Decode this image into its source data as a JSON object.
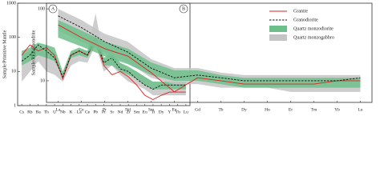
{
  "chart_data": [
    {
      "type": "line",
      "yscale": "log",
      "ylabel": "Sample/Primitive Mantle",
      "panel_label": "B",
      "categories": [
        "Cs",
        "Rb",
        "Ba",
        "Th",
        "U",
        "Nb",
        "K",
        "La",
        "Ce",
        "Pb",
        "Pr",
        "Sr",
        "Nd",
        "Zr",
        "Sm",
        "Eu",
        "Ti",
        "Dy",
        "Y",
        "Yb",
        "Lu"
      ],
      "ylim": [
        1,
        1000
      ],
      "yticks": [
        1,
        10,
        100,
        1000
      ],
      "series": [
        {
          "kind": "band",
          "color": "#c4c4c4",
          "low": [
            5,
            10,
            20,
            10,
            8,
            5,
            15,
            20,
            18,
            60,
            10,
            15,
            8,
            5,
            4,
            3,
            2,
            2,
            2,
            2,
            2
          ],
          "high": [
            30,
            40,
            60,
            40,
            35,
            9,
            35,
            45,
            40,
            500,
            25,
            40,
            18,
            12,
            10,
            7,
            5,
            5,
            5,
            5,
            5
          ]
        },
        {
          "kind": "band",
          "color": "#6dbf8a",
          "low": [
            15,
            20,
            30,
            25,
            20,
            7,
            25,
            30,
            25,
            60,
            15,
            15,
            10,
            8,
            6,
            4,
            3,
            3,
            3,
            3,
            3
          ],
          "high": [
            40,
            50,
            70,
            60,
            50,
            10,
            40,
            50,
            40,
            120,
            25,
            30,
            18,
            14,
            10,
            7,
            5,
            5,
            5,
            5,
            5
          ]
        },
        {
          "kind": "line",
          "color": "#e02020",
          "style": "solid",
          "values": [
            30,
            60,
            40,
            50,
            30,
            6,
            30,
            40,
            30,
            80,
            15,
            8,
            10,
            7,
            4,
            2,
            1.5,
            2,
            2.5,
            2.5,
            2.5
          ]
        },
        {
          "kind": "line",
          "color": "#111111",
          "style": "dashed",
          "values": [
            20,
            30,
            60,
            40,
            25,
            7,
            30,
            40,
            30,
            100,
            18,
            25,
            12,
            10,
            6,
            4,
            3,
            4,
            4,
            4,
            4
          ]
        }
      ]
    },
    {
      "type": "line",
      "yscale": "log",
      "ylabel": "Sample/REE Chondrite",
      "panel_label": "A",
      "legend": "upper right",
      "categories": [
        "La",
        "Ce",
        "Pr",
        "Nd",
        "Sm",
        "Eu",
        "Gd",
        "Tb",
        "Dy",
        "Ho",
        "Er",
        "Tm",
        "Yb",
        "Lu"
      ],
      "ylim": [
        5,
        120
      ],
      "yticks": [
        10,
        100
      ],
      "series": [
        {
          "name": "Quartz monzogabbro",
          "kind": "band",
          "color": "#c4c4c4",
          "low": [
            50,
            35,
            25,
            18,
            11,
            9,
            9,
            8,
            8,
            8,
            7,
            7,
            7,
            7
          ],
          "high": [
            100,
            70,
            45,
            35,
            20,
            15,
            15,
            13,
            12,
            12,
            12,
            12,
            12,
            12
          ]
        },
        {
          "name": "Quartz monzodiorite",
          "kind": "band",
          "color": "#6dbf8a",
          "low": [
            40,
            30,
            22,
            17,
            12,
            10,
            10,
            9,
            8,
            8,
            8,
            8,
            8,
            8
          ],
          "high": [
            70,
            50,
            35,
            28,
            18,
            14,
            14,
            12,
            11,
            11,
            11,
            11,
            11,
            11
          ]
        },
        {
          "name": "Granite",
          "kind": "line",
          "color": "#e02020",
          "style": "solid",
          "values": [
            60,
            40,
            28,
            22,
            13,
            7,
            11,
            10,
            9,
            9,
            9,
            9,
            10,
            10
          ]
        },
        {
          "name": "Granodiorite",
          "kind": "line",
          "color": "#111111",
          "style": "dashed",
          "values": [
            80,
            55,
            35,
            25,
            15,
            11,
            12,
            11,
            10,
            10,
            10,
            10,
            10,
            11
          ]
        }
      ]
    }
  ]
}
